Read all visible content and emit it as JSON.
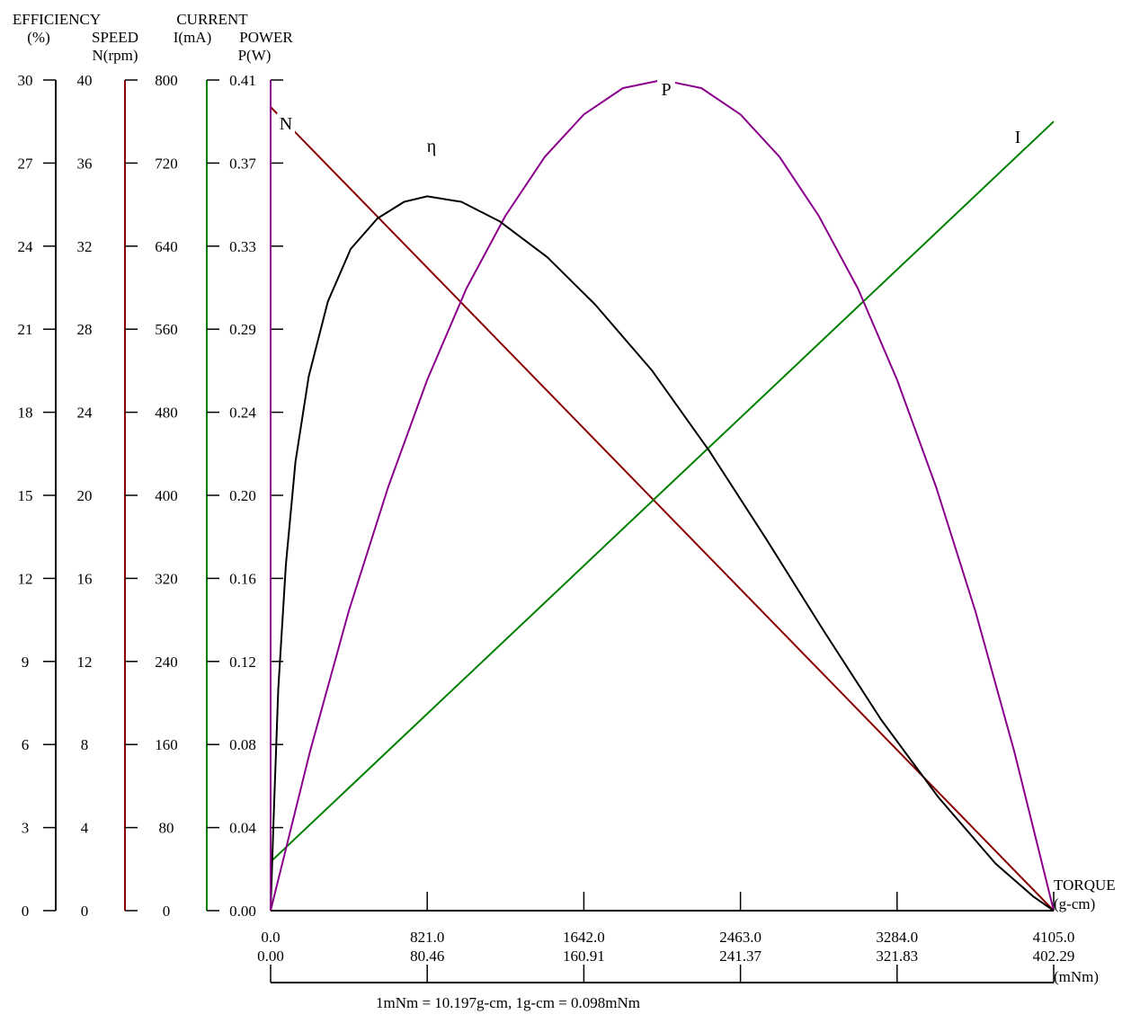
{
  "chart_data": {
    "type": "line",
    "x_axis": {
      "title": "TORQUE",
      "unit": "(g-cm)",
      "range": [
        0,
        4105
      ],
      "ticks": [
        "0.0",
        "821.0",
        "1642.0",
        "2463.0",
        "3284.0",
        "4105.0"
      ],
      "secondary_unit": "(mNm)",
      "secondary_ticks": [
        "0.00",
        "80.46",
        "160.91",
        "241.37",
        "321.83",
        "402.29"
      ]
    },
    "note": "1mNm = 10.197g-cm, 1g-cm = 0.098mNm",
    "y_axes": [
      {
        "key": "efficiency",
        "title_lines": [
          "EFFICIENCY",
          "(%)"
        ],
        "range": [
          0,
          30
        ],
        "ticks": [
          "0",
          "3",
          "6",
          "9",
          "12",
          "15",
          "18",
          "21",
          "24",
          "27",
          "30"
        ],
        "color": "#000000"
      },
      {
        "key": "speed",
        "title_lines": [
          "SPEED",
          "N(rpm)"
        ],
        "range": [
          0,
          40
        ],
        "ticks": [
          "0",
          "4",
          "8",
          "12",
          "16",
          "20",
          "24",
          "28",
          "32",
          "36",
          "40"
        ],
        "color": "#8b0000"
      },
      {
        "key": "current",
        "title_lines": [
          "CURRENT",
          "I(mA)"
        ],
        "range": [
          0,
          800
        ],
        "ticks": [
          "0",
          "80",
          "160",
          "240",
          "320",
          "400",
          "480",
          "560",
          "640",
          "720",
          "800"
        ],
        "color": "#008000"
      },
      {
        "key": "power",
        "title_lines": [
          "POWER",
          "P(W)"
        ],
        "range": [
          0,
          0.41
        ],
        "ticks": [
          "0.00",
          "0.04",
          "0.08",
          "0.12",
          "0.16",
          "0.20",
          "0.24",
          "0.29",
          "0.33",
          "0.37",
          "0.41"
        ],
        "color": "#8b008b"
      }
    ],
    "series": [
      {
        "name": "N",
        "axis": "speed",
        "color": "#8b0000",
        "points": [
          [
            0,
            38.7
          ],
          [
            4105,
            0
          ]
        ]
      },
      {
        "name": "I",
        "axis": "current",
        "color": "#008000",
        "points": [
          [
            0,
            47
          ],
          [
            4105,
            760
          ]
        ]
      },
      {
        "name": "P",
        "axis": "power",
        "color": "#8b008b",
        "points": [
          [
            0,
            0
          ],
          [
            205,
            0.078
          ],
          [
            410,
            0.148
          ],
          [
            616,
            0.209
          ],
          [
            821,
            0.262
          ],
          [
            1026,
            0.307
          ],
          [
            1231,
            0.343
          ],
          [
            1437,
            0.372
          ],
          [
            1642,
            0.393
          ],
          [
            1847,
            0.406
          ],
          [
            2053,
            0.41
          ],
          [
            2258,
            0.406
          ],
          [
            2463,
            0.393
          ],
          [
            2668,
            0.372
          ],
          [
            2873,
            0.343
          ],
          [
            3079,
            0.307
          ],
          [
            3284,
            0.262
          ],
          [
            3489,
            0.209
          ],
          [
            3694,
            0.148
          ],
          [
            3900,
            0.078
          ],
          [
            4105,
            0
          ]
        ]
      },
      {
        "name": "η",
        "axis": "efficiency",
        "color": "#000000",
        "points": [
          [
            0,
            0
          ],
          [
            15,
            3.2
          ],
          [
            40,
            8.0
          ],
          [
            80,
            12.5
          ],
          [
            130,
            16.2
          ],
          [
            200,
            19.3
          ],
          [
            300,
            22.0
          ],
          [
            420,
            23.9
          ],
          [
            560,
            25.0
          ],
          [
            700,
            25.6
          ],
          [
            821,
            25.8
          ],
          [
            1000,
            25.6
          ],
          [
            1200,
            24.9
          ],
          [
            1450,
            23.6
          ],
          [
            1700,
            21.9
          ],
          [
            2000,
            19.5
          ],
          [
            2300,
            16.6
          ],
          [
            2600,
            13.4
          ],
          [
            2900,
            10.1
          ],
          [
            3200,
            6.9
          ],
          [
            3500,
            4.1
          ],
          [
            3800,
            1.7
          ],
          [
            4000,
            0.5
          ],
          [
            4105,
            0
          ]
        ]
      }
    ]
  }
}
